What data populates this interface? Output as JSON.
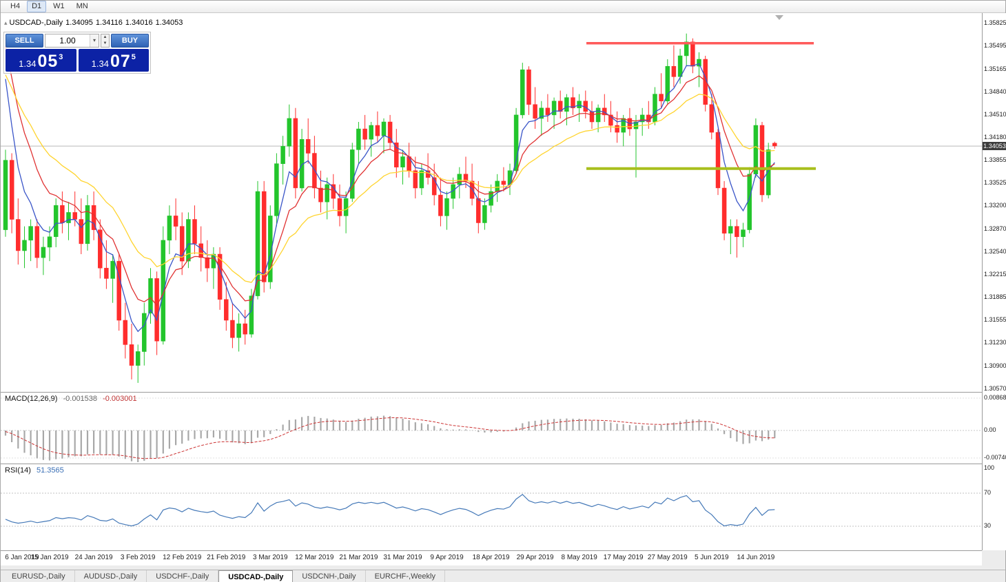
{
  "colors": {
    "up": "#23c52c",
    "down": "#ff2d2d",
    "ma_fast_blue": "#3a55c8",
    "ma_mid_red": "#e03131",
    "ma_slow_yellow": "#ffd42e",
    "resistance_line": "#ff5a5a",
    "support_line": "#a8bf1d",
    "macd_bar": "#a8a8a8",
    "macd_signal": "#cc3333",
    "rsi_line": "#4579b8",
    "current_price_line": "#b9b9b9",
    "badge_bg": "#3d3d3d",
    "trade_button": "#3a6fc0",
    "price_box": "#0c22a5"
  },
  "toolbar": {
    "timeframes": [
      "H4",
      "D1",
      "W1",
      "MN"
    ],
    "active": "D1"
  },
  "chart_header": {
    "collapse_icon": "▴",
    "symbol_title": "USDCAD-,Daily",
    "open": "1.34095",
    "high": "1.34116",
    "low": "1.34016",
    "close": "1.34053"
  },
  "trade_panel": {
    "sell_label": "SELL",
    "buy_label": "BUY",
    "volume": "1.00",
    "dropdown_icon": "▾",
    "spin_up_icon": "▲",
    "spin_down_icon": "▼",
    "sell_price": {
      "big_prefix": "1.34",
      "big": "05",
      "sup": "3"
    },
    "buy_price": {
      "big_prefix": "1.34",
      "big": "07",
      "sup": "5"
    }
  },
  "price_axis": {
    "labels": [
      "1.35825",
      "1.35495",
      "1.35165",
      "1.34840",
      "1.34510",
      "1.34180",
      "1.33855",
      "1.33525",
      "1.33200",
      "1.32870",
      "1.32540",
      "1.32215",
      "1.31885",
      "1.31555",
      "1.31230",
      "1.30900",
      "1.30570"
    ],
    "current": "1.34053"
  },
  "macd": {
    "header": "MACD(12,26,9)",
    "value_main": "-0.001538",
    "value_signal": "-0.003001",
    "axis": [
      "0.008686",
      "0.00",
      "-0.007404"
    ]
  },
  "rsi": {
    "header": "RSI(14)",
    "value": "51.3565",
    "axis": [
      "100",
      "70",
      "30"
    ]
  },
  "date_axis": [
    {
      "label": "6 Jan 2019",
      "i": 0
    },
    {
      "label": "15 Jan 2019",
      "i": 7
    },
    {
      "label": "24 Jan 2019",
      "i": 14
    },
    {
      "label": "3 Feb 2019",
      "i": 21
    },
    {
      "label": "12 Feb 2019",
      "i": 28
    },
    {
      "label": "21 Feb 2019",
      "i": 35
    },
    {
      "label": "3 Mar 2019",
      "i": 42
    },
    {
      "label": "12 Mar 2019",
      "i": 49
    },
    {
      "label": "21 Mar 2019",
      "i": 56
    },
    {
      "label": "31 Mar 2019",
      "i": 63
    },
    {
      "label": "9 Apr 2019",
      "i": 70
    },
    {
      "label": "18 Apr 2019",
      "i": 77
    },
    {
      "label": "29 Apr 2019",
      "i": 84
    },
    {
      "label": "8 May 2019",
      "i": 91
    },
    {
      "label": "17 May 2019",
      "i": 98
    },
    {
      "label": "27 May 2019",
      "i": 105
    },
    {
      "label": "5 Jun 2019",
      "i": 112
    },
    {
      "label": "14 Jun 2019",
      "i": 119
    }
  ],
  "tabs": {
    "items": [
      "EURUSD-,Daily",
      "AUDUSD-,Daily",
      "USDCHF-,Daily",
      "USDCAD-,Daily",
      "USDCNH-,Daily",
      "EURCHF-,Weekly"
    ],
    "active_index": 3
  },
  "chart_data": {
    "type": "candlestick",
    "symbol": "USDCAD",
    "timeframe": "Daily",
    "price_range": [
      1.3057,
      1.35825
    ],
    "levels": {
      "resistance": 1.3553,
      "support": 1.3373,
      "current": 1.34053
    },
    "moving_averages": [
      {
        "period": 5,
        "seed": 1.356,
        "color": "#3a55c8"
      },
      {
        "period": 10,
        "seed": 1.3585,
        "color": "#e03131"
      },
      {
        "period": 21,
        "seed": 1.352,
        "color": "#ffd42e"
      }
    ],
    "candles": [
      [
        1.3285,
        1.34,
        1.3275,
        1.3385
      ],
      [
        1.3385,
        1.3395,
        1.328,
        1.33
      ],
      [
        1.33,
        1.333,
        1.3235,
        1.3255
      ],
      [
        1.3255,
        1.329,
        1.323,
        1.327
      ],
      [
        1.327,
        1.33,
        1.324,
        1.329
      ],
      [
        1.329,
        1.33,
        1.323,
        1.3245
      ],
      [
        1.3245,
        1.3275,
        1.322,
        1.326
      ],
      [
        1.326,
        1.329,
        1.324,
        1.3275
      ],
      [
        1.3275,
        1.333,
        1.326,
        1.332
      ],
      [
        1.332,
        1.334,
        1.328,
        1.3295
      ],
      [
        1.3295,
        1.3325,
        1.327,
        1.331
      ],
      [
        1.331,
        1.334,
        1.329,
        1.33
      ],
      [
        1.33,
        1.333,
        1.325,
        1.3265
      ],
      [
        1.3265,
        1.3335,
        1.3255,
        1.332
      ],
      [
        1.332,
        1.334,
        1.327,
        1.3285
      ],
      [
        1.3285,
        1.33,
        1.3215,
        1.323
      ],
      [
        1.323,
        1.327,
        1.32,
        1.3215
      ],
      [
        1.3215,
        1.325,
        1.318,
        1.324
      ],
      [
        1.324,
        1.325,
        1.314,
        1.3155
      ],
      [
        1.3155,
        1.318,
        1.31,
        1.312
      ],
      [
        1.312,
        1.315,
        1.307,
        1.309
      ],
      [
        1.309,
        1.312,
        1.3065,
        1.311
      ],
      [
        1.311,
        1.318,
        1.309,
        1.3165
      ],
      [
        1.3165,
        1.323,
        1.315,
        1.3215
      ],
      [
        1.3215,
        1.3225,
        1.3105,
        1.3125
      ],
      [
        1.3125,
        1.329,
        1.312,
        1.327
      ],
      [
        1.327,
        1.332,
        1.325,
        1.3305
      ],
      [
        1.3305,
        1.333,
        1.327,
        1.329
      ],
      [
        1.329,
        1.331,
        1.322,
        1.324
      ],
      [
        1.324,
        1.331,
        1.323,
        1.33
      ],
      [
        1.33,
        1.332,
        1.325,
        1.3265
      ],
      [
        1.3265,
        1.329,
        1.3225,
        1.3245
      ],
      [
        1.3245,
        1.327,
        1.321,
        1.323
      ],
      [
        1.323,
        1.326,
        1.32,
        1.325
      ],
      [
        1.325,
        1.326,
        1.317,
        1.3185
      ],
      [
        1.3185,
        1.321,
        1.314,
        1.3155
      ],
      [
        1.3155,
        1.318,
        1.3115,
        1.313
      ],
      [
        1.313,
        1.3165,
        1.311,
        1.315
      ],
      [
        1.315,
        1.317,
        1.312,
        1.3135
      ],
      [
        1.3135,
        1.32,
        1.313,
        1.319
      ],
      [
        1.319,
        1.3355,
        1.3185,
        1.334
      ],
      [
        1.334,
        1.3355,
        1.3195,
        1.321
      ],
      [
        1.321,
        1.332,
        1.32,
        1.3305
      ],
      [
        1.3305,
        1.3395,
        1.329,
        1.338
      ],
      [
        1.338,
        1.342,
        1.335,
        1.3405
      ],
      [
        1.3405,
        1.3465,
        1.339,
        1.3445
      ],
      [
        1.3445,
        1.346,
        1.333,
        1.3345
      ],
      [
        1.3345,
        1.343,
        1.334,
        1.3415
      ],
      [
        1.3415,
        1.3445,
        1.338,
        1.3395
      ],
      [
        1.3395,
        1.342,
        1.333,
        1.3345
      ],
      [
        1.3345,
        1.337,
        1.331,
        1.3325
      ],
      [
        1.3325,
        1.336,
        1.33,
        1.335
      ],
      [
        1.335,
        1.3365,
        1.3315,
        1.333
      ],
      [
        1.333,
        1.335,
        1.329,
        1.3305
      ],
      [
        1.3305,
        1.334,
        1.328,
        1.333
      ],
      [
        1.333,
        1.341,
        1.3325,
        1.34
      ],
      [
        1.34,
        1.344,
        1.338,
        1.343
      ],
      [
        1.343,
        1.345,
        1.34,
        1.3415
      ],
      [
        1.3415,
        1.344,
        1.339,
        1.3435
      ],
      [
        1.3435,
        1.3455,
        1.341,
        1.342
      ],
      [
        1.342,
        1.3445,
        1.3395,
        1.344
      ],
      [
        1.344,
        1.345,
        1.34,
        1.341
      ],
      [
        1.341,
        1.343,
        1.336,
        1.3375
      ],
      [
        1.3375,
        1.34,
        1.335,
        1.339
      ],
      [
        1.339,
        1.341,
        1.336,
        1.337
      ],
      [
        1.337,
        1.339,
        1.333,
        1.3345
      ],
      [
        1.3345,
        1.338,
        1.3335,
        1.337
      ],
      [
        1.337,
        1.3395,
        1.335,
        1.336
      ],
      [
        1.336,
        1.338,
        1.332,
        1.3335
      ],
      [
        1.3335,
        1.336,
        1.329,
        1.3305
      ],
      [
        1.3305,
        1.334,
        1.3285,
        1.333
      ],
      [
        1.333,
        1.336,
        1.3315,
        1.335
      ],
      [
        1.335,
        1.3375,
        1.333,
        1.3365
      ],
      [
        1.3365,
        1.339,
        1.3345,
        1.3355
      ],
      [
        1.3355,
        1.338,
        1.332,
        1.333
      ],
      [
        1.333,
        1.3355,
        1.328,
        1.3295
      ],
      [
        1.3295,
        1.333,
        1.3285,
        1.332
      ],
      [
        1.332,
        1.335,
        1.331,
        1.334
      ],
      [
        1.334,
        1.3365,
        1.3325,
        1.3355
      ],
      [
        1.3355,
        1.3375,
        1.334,
        1.335
      ],
      [
        1.335,
        1.338,
        1.3335,
        1.337
      ],
      [
        1.337,
        1.346,
        1.3365,
        1.345
      ],
      [
        1.345,
        1.3525,
        1.3445,
        1.3515
      ],
      [
        1.3515,
        1.352,
        1.345,
        1.3465
      ],
      [
        1.3465,
        1.349,
        1.343,
        1.3445
      ],
      [
        1.3445,
        1.347,
        1.342,
        1.346
      ],
      [
        1.346,
        1.348,
        1.344,
        1.345
      ],
      [
        1.345,
        1.3475,
        1.343,
        1.347
      ],
      [
        1.347,
        1.3485,
        1.3445,
        1.3455
      ],
      [
        1.3455,
        1.348,
        1.3435,
        1.3475
      ],
      [
        1.3475,
        1.349,
        1.345,
        1.346
      ],
      [
        1.346,
        1.348,
        1.344,
        1.347
      ],
      [
        1.347,
        1.3485,
        1.3445,
        1.3455
      ],
      [
        1.3455,
        1.347,
        1.343,
        1.344
      ],
      [
        1.344,
        1.3465,
        1.3425,
        1.346
      ],
      [
        1.346,
        1.348,
        1.344,
        1.345
      ],
      [
        1.345,
        1.347,
        1.3425,
        1.3435
      ],
      [
        1.3435,
        1.3455,
        1.341,
        1.3425
      ],
      [
        1.3425,
        1.345,
        1.3405,
        1.3445
      ],
      [
        1.3445,
        1.346,
        1.342,
        1.343
      ],
      [
        1.343,
        1.345,
        1.336,
        1.344
      ],
      [
        1.344,
        1.346,
        1.342,
        1.345
      ],
      [
        1.345,
        1.347,
        1.343,
        1.344
      ],
      [
        1.344,
        1.349,
        1.3435,
        1.348
      ],
      [
        1.348,
        1.351,
        1.346,
        1.347
      ],
      [
        1.347,
        1.353,
        1.3465,
        1.352
      ],
      [
        1.352,
        1.355,
        1.349,
        1.3505
      ],
      [
        1.3505,
        1.3545,
        1.3495,
        1.3535
      ],
      [
        1.3535,
        1.3567,
        1.352,
        1.3555
      ],
      [
        1.3555,
        1.356,
        1.351,
        1.352
      ],
      [
        1.352,
        1.354,
        1.349,
        1.353
      ],
      [
        1.353,
        1.3535,
        1.3455,
        1.3465
      ],
      [
        1.3465,
        1.348,
        1.3415,
        1.3425
      ],
      [
        1.3425,
        1.343,
        1.3335,
        1.3345
      ],
      [
        1.3345,
        1.3355,
        1.327,
        1.328
      ],
      [
        1.328,
        1.33,
        1.325,
        1.329
      ],
      [
        1.329,
        1.33,
        1.3245,
        1.3275
      ],
      [
        1.3275,
        1.3295,
        1.326,
        1.3285
      ],
      [
        1.3285,
        1.3375,
        1.328,
        1.3365
      ],
      [
        1.3365,
        1.3445,
        1.336,
        1.3435
      ],
      [
        1.3435,
        1.344,
        1.3325,
        1.3335
      ],
      [
        1.3335,
        1.341,
        1.333,
        1.34
      ],
      [
        1.34095,
        1.34116,
        1.34016,
        1.34053
      ]
    ]
  }
}
